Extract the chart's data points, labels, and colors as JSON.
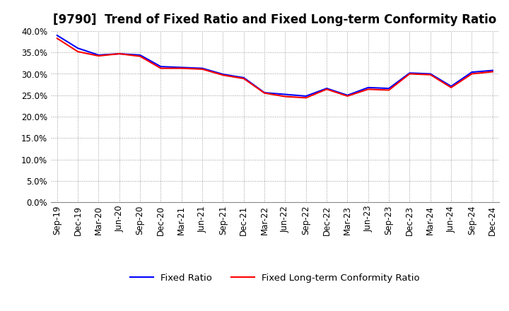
{
  "title": "[9790]  Trend of Fixed Ratio and Fixed Long-term Conformity Ratio",
  "x_labels": [
    "Sep-19",
    "Dec-19",
    "Mar-20",
    "Jun-20",
    "Sep-20",
    "Dec-20",
    "Mar-21",
    "Jun-21",
    "Sep-21",
    "Dec-21",
    "Mar-22",
    "Jun-22",
    "Sep-22",
    "Dec-22",
    "Mar-23",
    "Jun-23",
    "Sep-23",
    "Dec-23",
    "Mar-24",
    "Jun-24",
    "Sep-24",
    "Dec-24"
  ],
  "fixed_ratio": [
    0.39,
    0.36,
    0.344,
    0.347,
    0.344,
    0.317,
    0.315,
    0.313,
    0.299,
    0.291,
    0.256,
    0.252,
    0.248,
    0.266,
    0.25,
    0.268,
    0.266,
    0.302,
    0.3,
    0.271,
    0.304,
    0.308
  ],
  "fixed_lt_ratio": [
    0.383,
    0.352,
    0.342,
    0.347,
    0.341,
    0.313,
    0.313,
    0.311,
    0.297,
    0.289,
    0.255,
    0.247,
    0.244,
    0.264,
    0.248,
    0.264,
    0.262,
    0.3,
    0.298,
    0.268,
    0.3,
    0.305
  ],
  "fixed_ratio_color": "#0000FF",
  "fixed_lt_ratio_color": "#FF0000",
  "ylim": [
    0.0,
    0.4
  ],
  "yticks": [
    0.0,
    0.05,
    0.1,
    0.15,
    0.2,
    0.25,
    0.3,
    0.35,
    0.4
  ],
  "background_color": "#FFFFFF",
  "grid_color": "#999999",
  "line_width": 1.5,
  "legend_fixed": "Fixed Ratio",
  "legend_fixed_lt": "Fixed Long-term Conformity Ratio",
  "title_fontsize": 12,
  "axis_fontsize": 8.5,
  "legend_fontsize": 9.5
}
